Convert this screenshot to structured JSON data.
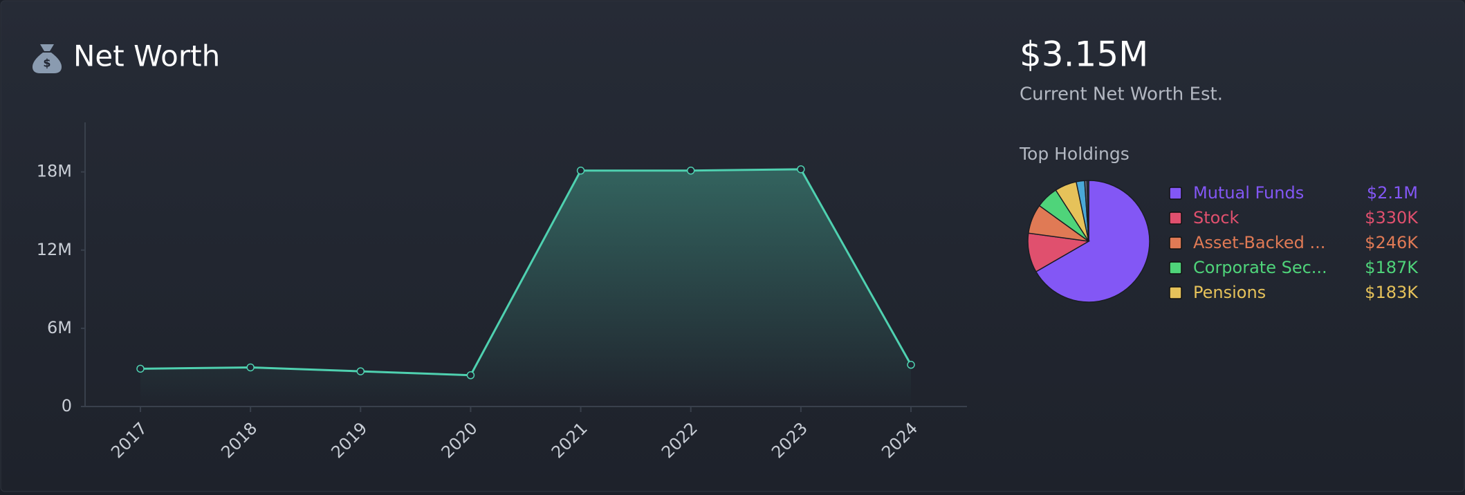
{
  "header": {
    "title": "Net Worth"
  },
  "summary": {
    "value": "$3.15M",
    "caption": "Current Net Worth Est.",
    "holdings_title": "Top Holdings"
  },
  "chart_data": [
    {
      "type": "line",
      "categories": [
        "2017",
        "2018",
        "2019",
        "2020",
        "2021",
        "2022",
        "2023",
        "2024"
      ],
      "series": [
        {
          "color": "#4fd1b0",
          "values": [
            2900000,
            3000000,
            2700000,
            2400000,
            18100000,
            18100000,
            18200000,
            3200000
          ]
        }
      ],
      "ylim": [
        0,
        21800000
      ],
      "yticks": [
        0,
        {
          "value": 6000000,
          "label": "6M"
        },
        {
          "value": 12000000,
          "label": "12M"
        },
        {
          "value": 18000000,
          "label": "18M"
        }
      ],
      "grid": false
    },
    {
      "type": "pie",
      "categories": [
        "Mutual Funds",
        "Stock",
        "Asset-Backed ...",
        "Corporate Sec...",
        "Pensions",
        null,
        null,
        null
      ],
      "values": [
        2100000,
        330000,
        246000,
        187000,
        183000,
        70000,
        20000,
        14000
      ],
      "value_labels": [
        "$2.1M",
        "$330K",
        "$246K",
        "$187K",
        "$183K",
        null,
        null,
        null
      ],
      "colors": [
        "#8357f5",
        "#e0506e",
        "#e07a55",
        "#4fd47a",
        "#e6c25a",
        "#4aa8d8",
        "#6b7280",
        "#3b4252"
      ]
    }
  ]
}
